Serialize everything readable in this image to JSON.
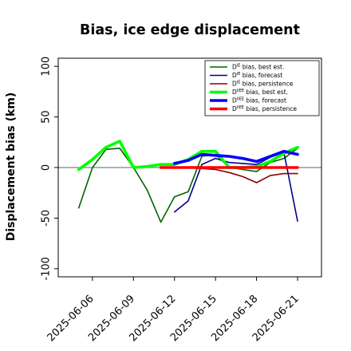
{
  "chart_data": {
    "type": "line",
    "title": "Bias, ice edge displacement",
    "xlabel": "",
    "ylabel": "Displacement bias (km)",
    "ylim": [
      -108,
      108
    ],
    "xlim": [
      "2025-06-03T12:00",
      "2025-06-22T18:00"
    ],
    "grid": false,
    "legend_position": "top-right",
    "zero_line": true,
    "zero_line_color": "#808080",
    "x_ticks": [
      "2025-06-06",
      "2025-06-09",
      "2025-06-12",
      "2025-06-15",
      "2025-06-18",
      "2025-06-21"
    ],
    "x_tick_colors": [
      "#000000",
      "#000000",
      "#228b22",
      "#000000",
      "#000000",
      "#000000"
    ],
    "y_ticks": [
      -100,
      -50,
      0,
      50,
      100
    ],
    "series": [
      {
        "name": "D^IE bias, best est.",
        "label_main": "D",
        "label_sup": "IE",
        "label_rest": " bias, best est.",
        "color": "#006400",
        "width": 1.6,
        "points": [
          [
            "2025-06-05",
            -40
          ],
          [
            "2025-06-06",
            0
          ],
          [
            "2025-06-07",
            18
          ],
          [
            "2025-06-08",
            19
          ],
          [
            "2025-06-09",
            0
          ],
          [
            "2025-06-10",
            -22
          ],
          [
            "2025-06-11",
            -54
          ],
          [
            "2025-06-12",
            -29
          ],
          [
            "2025-06-13",
            -24
          ],
          [
            "2025-06-14",
            11
          ],
          [
            "2025-06-15",
            13
          ],
          [
            "2025-06-16",
            0
          ],
          [
            "2025-06-17",
            -2
          ],
          [
            "2025-06-18",
            -4
          ],
          [
            "2025-06-19",
            5
          ],
          [
            "2025-06-20",
            9
          ],
          [
            "2025-06-21",
            19
          ]
        ]
      },
      {
        "name": "D^IE bias, forecast",
        "label_main": "D",
        "label_sup": "IE",
        "label_rest": " bias, forecast",
        "color": "#00008b",
        "width": 1.6,
        "points": [
          [
            "2025-06-12",
            -44
          ],
          [
            "2025-06-13",
            -33
          ],
          [
            "2025-06-14",
            3
          ],
          [
            "2025-06-15",
            9
          ],
          [
            "2025-06-16",
            5
          ],
          [
            "2025-06-17",
            4
          ],
          [
            "2025-06-18",
            3
          ],
          [
            "2025-06-19",
            10
          ],
          [
            "2025-06-20",
            15
          ],
          [
            "2025-06-21",
            -53
          ]
        ]
      },
      {
        "name": "D^IE bias, persistence",
        "label_main": "D",
        "label_sup": "IE",
        "label_rest": " bias, persistence",
        "color": "#8b0000",
        "width": 1.6,
        "points": [
          [
            "2025-06-11",
            0
          ],
          [
            "2025-06-12",
            0
          ],
          [
            "2025-06-13",
            0
          ],
          [
            "2025-06-14",
            -1
          ],
          [
            "2025-06-15",
            -2
          ],
          [
            "2025-06-16",
            -5
          ],
          [
            "2025-06-17",
            -9
          ],
          [
            "2025-06-18",
            -15
          ],
          [
            "2025-06-19",
            -8
          ],
          [
            "2025-06-20",
            -6
          ],
          [
            "2025-06-21",
            -6
          ]
        ]
      },
      {
        "name": "D^IIEE bias, best est.",
        "label_main": "D",
        "label_sup": "IIEE",
        "label_rest": " bias, best est.",
        "color": "#00ff00",
        "width": 3.6,
        "points": [
          [
            "2025-06-05",
            -2
          ],
          [
            "2025-06-06",
            8
          ],
          [
            "2025-06-07",
            20
          ],
          [
            "2025-06-08",
            26
          ],
          [
            "2025-06-09",
            0
          ],
          [
            "2025-06-10",
            1
          ],
          [
            "2025-06-11",
            3
          ],
          [
            "2025-06-12",
            3
          ],
          [
            "2025-06-13",
            8
          ],
          [
            "2025-06-14",
            16
          ],
          [
            "2025-06-15",
            16
          ],
          [
            "2025-06-16",
            0
          ],
          [
            "2025-06-17",
            0
          ],
          [
            "2025-06-18",
            1
          ],
          [
            "2025-06-19",
            6
          ],
          [
            "2025-06-20",
            14
          ],
          [
            "2025-06-21",
            20
          ]
        ]
      },
      {
        "name": "D^IIEE bias, forecast",
        "label_main": "D",
        "label_sup": "IIEE",
        "label_rest": " bias, forecast",
        "color": "#0000ff",
        "width": 3.6,
        "points": [
          [
            "2025-06-12",
            4
          ],
          [
            "2025-06-13",
            7
          ],
          [
            "2025-06-14",
            13
          ],
          [
            "2025-06-15",
            12
          ],
          [
            "2025-06-16",
            11
          ],
          [
            "2025-06-17",
            9
          ],
          [
            "2025-06-18",
            6
          ],
          [
            "2025-06-19",
            11
          ],
          [
            "2025-06-20",
            16
          ],
          [
            "2025-06-21",
            13
          ]
        ]
      },
      {
        "name": "D^IIEE bias, persistence",
        "label_main": "D",
        "label_sup": "IIEE",
        "label_rest": " bias, persistence",
        "color": "#ff0000",
        "width": 3.6,
        "points": [
          [
            "2025-06-11",
            0
          ],
          [
            "2025-06-12",
            0
          ],
          [
            "2025-06-13",
            0
          ],
          [
            "2025-06-14",
            0
          ],
          [
            "2025-06-15",
            0
          ],
          [
            "2025-06-16",
            0
          ],
          [
            "2025-06-17",
            0
          ],
          [
            "2025-06-18",
            0
          ],
          [
            "2025-06-19",
            0
          ],
          [
            "2025-06-20",
            0
          ],
          [
            "2025-06-21",
            0
          ]
        ]
      }
    ]
  }
}
